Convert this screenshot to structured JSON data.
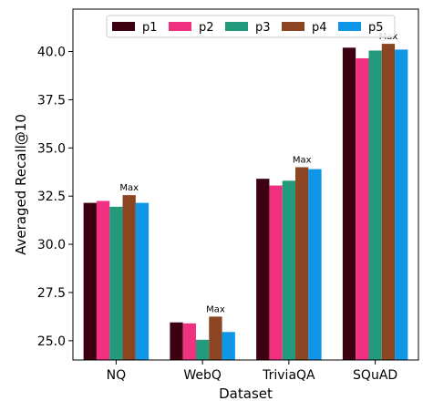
{
  "chart_data": {
    "type": "bar",
    "title": "",
    "xlabel": "Dataset",
    "ylabel": "Averaged Recall@10",
    "categories": [
      "NQ",
      "WebQ",
      "TriviaQA",
      "SQuAD"
    ],
    "ylim": [
      24.0,
      42.2
    ],
    "yticks": [
      "25.0",
      "27.5",
      "30.0",
      "32.5",
      "35.0",
      "37.5",
      "40.0"
    ],
    "grid": false,
    "legend_position": "top-center",
    "series": [
      {
        "name": "p1",
        "color": "#3d0010",
        "values": [
          32.15,
          25.95,
          33.4,
          40.2
        ]
      },
      {
        "name": "p2",
        "color": "#f0317f",
        "values": [
          32.25,
          25.9,
          33.05,
          39.65
        ]
      },
      {
        "name": "p3",
        "color": "#229a7b",
        "values": [
          31.95,
          25.05,
          33.3,
          40.05
        ]
      },
      {
        "name": "p4",
        "color": "#8b4522",
        "values": [
          32.55,
          26.25,
          34.0,
          40.4
        ]
      },
      {
        "name": "p5",
        "color": "#0d97e6",
        "values": [
          32.15,
          25.45,
          33.9,
          40.1
        ]
      }
    ],
    "annotations": [
      {
        "text": "Max",
        "category": "NQ",
        "series": "p4"
      },
      {
        "text": "Max",
        "category": "WebQ",
        "series": "p4"
      },
      {
        "text": "Max",
        "category": "TriviaQA",
        "series": "p4"
      },
      {
        "text": "Max",
        "category": "SQuAD",
        "series": "p4"
      }
    ]
  }
}
